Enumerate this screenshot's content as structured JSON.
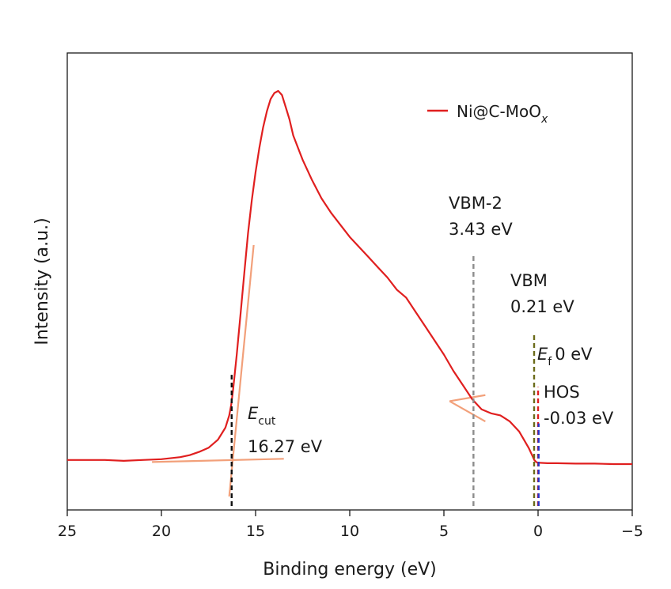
{
  "chart_data": {
    "type": "line",
    "title": "",
    "xlabel": "Binding energy (eV)",
    "ylabel": "Intensity (a.u.)",
    "xlim": [
      25,
      -5
    ],
    "ylim": [
      0,
      1
    ],
    "x_reversed": true,
    "x_ticks": [
      25,
      20,
      15,
      10,
      5,
      0,
      -5
    ],
    "x_tick_labels": [
      "25",
      "20",
      "15",
      "10",
      "5",
      "0",
      "−5"
    ],
    "y_ticks_shown": false,
    "grid": false,
    "legend_position": "top-right",
    "series": [
      {
        "name": "Ni@C-MoO",
        "name_subscript": "x",
        "color": "#e01f1f",
        "x": [
          25,
          24,
          23,
          22,
          21,
          20,
          19,
          18.5,
          18,
          17.5,
          17,
          16.8,
          16.6,
          16.4,
          16.3,
          16.2,
          16.0,
          15.8,
          15.6,
          15.4,
          15.2,
          15.0,
          14.8,
          14.6,
          14.4,
          14.2,
          14.0,
          13.8,
          13.6,
          13.4,
          13.2,
          13.0,
          12.5,
          12.0,
          11.5,
          11.0,
          10.5,
          10.0,
          9.5,
          9.0,
          8.5,
          8.0,
          7.5,
          7.0,
          6.5,
          6.0,
          5.5,
          5.0,
          4.5,
          4.0,
          3.5,
          3.0,
          2.5,
          2.0,
          1.5,
          1.0,
          0.5,
          0.3,
          0.2,
          0.1,
          0.0,
          -0.1,
          -0.5,
          -1,
          -2,
          -3,
          -4,
          -5
        ],
        "y": [
          0.09,
          0.09,
          0.09,
          0.088,
          0.09,
          0.092,
          0.097,
          0.102,
          0.11,
          0.12,
          0.14,
          0.155,
          0.17,
          0.2,
          0.225,
          0.26,
          0.35,
          0.45,
          0.55,
          0.65,
          0.73,
          0.8,
          0.86,
          0.91,
          0.95,
          0.98,
          0.995,
          1.0,
          0.99,
          0.96,
          0.93,
          0.89,
          0.83,
          0.78,
          0.735,
          0.7,
          0.67,
          0.64,
          0.615,
          0.59,
          0.565,
          0.54,
          0.51,
          0.49,
          0.455,
          0.42,
          0.385,
          0.35,
          0.31,
          0.275,
          0.24,
          0.215,
          0.205,
          0.2,
          0.185,
          0.16,
          0.12,
          0.1,
          0.09,
          0.085,
          0.083,
          0.083,
          0.082,
          0.082,
          0.081,
          0.081,
          0.08,
          0.08
        ]
      }
    ],
    "fit_lines": [
      {
        "color": "#f2a07a",
        "x": [
          20.5,
          13.5
        ],
        "y": [
          0.085,
          0.093
        ]
      },
      {
        "color": "#f2a07a",
        "x": [
          16.4,
          15.1
        ],
        "y": [
          0.0,
          0.62
        ]
      },
      {
        "color": "#f2a07a",
        "x": [
          4.7,
          2.8
        ],
        "y": [
          0.235,
          0.185
        ]
      },
      {
        "color": "#f2a07a",
        "x": [
          4.7,
          2.8
        ],
        "y": [
          0.235,
          0.25
        ]
      }
    ],
    "markers": [
      {
        "x": 16.27,
        "color": "#111111",
        "y_top": 0.3
      },
      {
        "x": 3.43,
        "color": "#8c8c8c",
        "y_top": 0.6
      },
      {
        "x": 0.21,
        "color": "#6b6b1a",
        "y_top": 0.4
      },
      {
        "x": 0.0,
        "color": "#e01f1f",
        "y_top": 0.27
      },
      {
        "x": -0.03,
        "color": "#2433c8",
        "y_top": 0.18
      }
    ],
    "annotations": {
      "ecut_symbol": "E",
      "ecut_subscript": "cut",
      "ecut_value": "16.27 eV",
      "vbm2_label": "VBM-2",
      "vbm2_value": "3.43 eV",
      "vbm_label": "VBM",
      "vbm_value": "0.21 eV",
      "ef_symbol": "E",
      "ef_subscript": "f",
      "ef_value": "0 eV",
      "hos_label": "HOS",
      "hos_value": "-0.03 eV"
    }
  }
}
